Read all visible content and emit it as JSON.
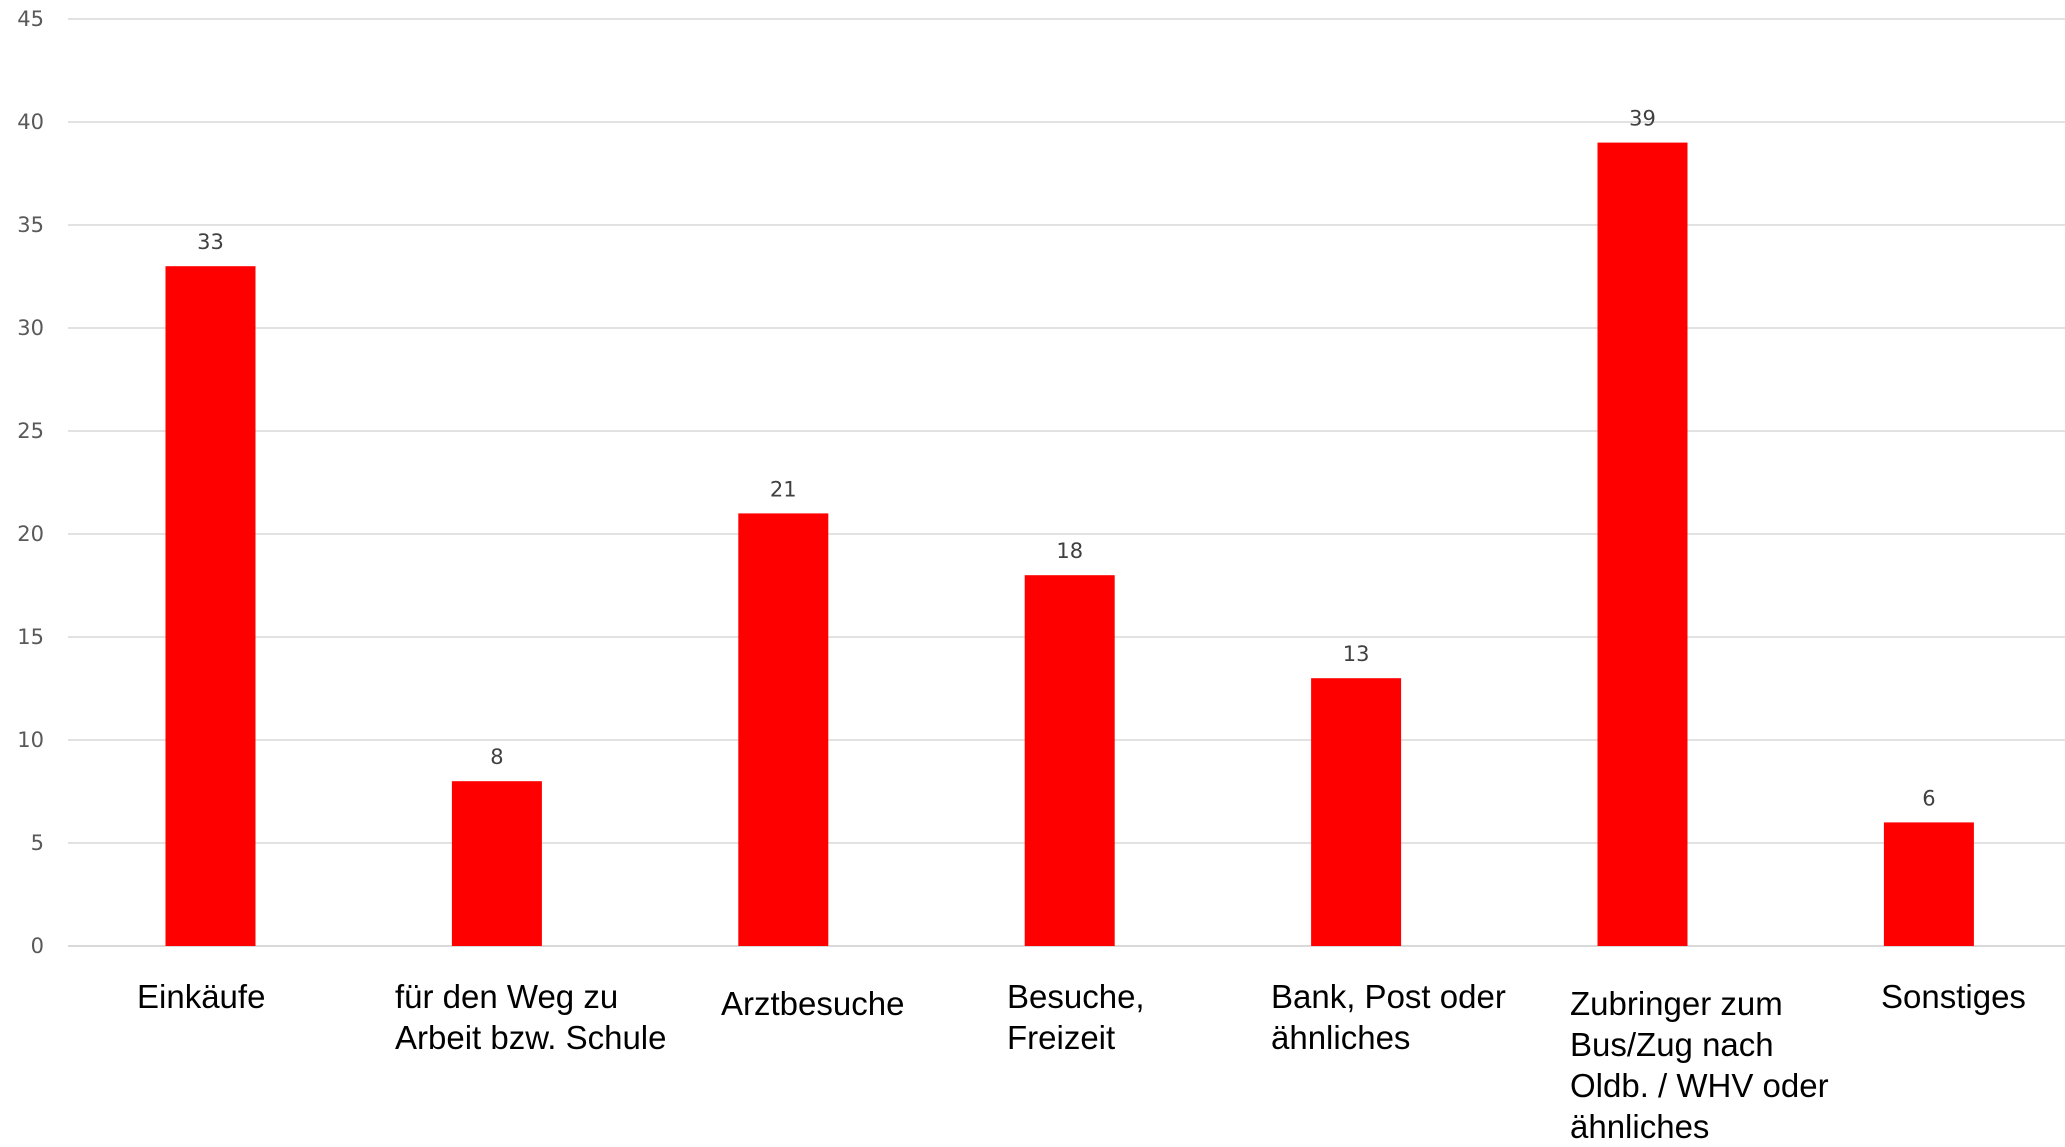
{
  "chart_data": {
    "type": "bar",
    "categories": [
      [
        "Einkäufe"
      ],
      [
        "für den Weg zu",
        "Arbeit bzw. Schule"
      ],
      [
        "Arztbesuche"
      ],
      [
        "Besuche,",
        "Freizeit"
      ],
      [
        "Bank, Post oder",
        "ähnliches"
      ],
      [
        "Zubringer zum",
        "Bus/Zug nach",
        "Oldb. / WHV oder",
        "ähnliches"
      ],
      [
        "Sonstiges"
      ]
    ],
    "values": [
      33,
      8,
      21,
      18,
      13,
      39,
      6
    ],
    "data_labels": [
      "33",
      "8",
      "21",
      "18",
      "13",
      "39",
      "6"
    ],
    "ylim": [
      0,
      45
    ],
    "yticks": [
      "0",
      "5",
      "10",
      "15",
      "20",
      "25",
      "30",
      "35",
      "40",
      "45"
    ],
    "grid": true,
    "legend": "none",
    "colors": {
      "bar": "#ff0000",
      "grid": "#d9d9d9"
    }
  }
}
